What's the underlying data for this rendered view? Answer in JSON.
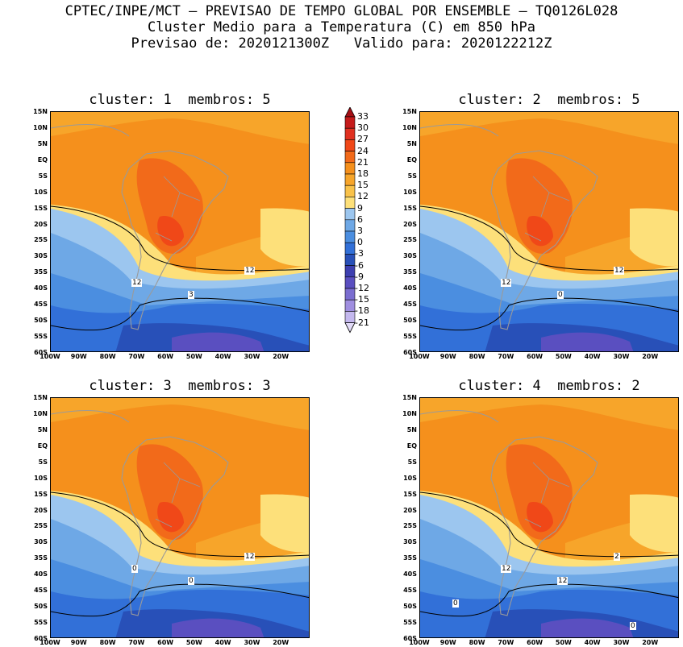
{
  "header": {
    "line1": "CPTEC/INPE/MCT – PREVISAO DE TEMPO GLOBAL POR ENSEMBLE – TQ0126L028",
    "line2": "Cluster Medio para a Temperatura (C) em 850 hPa",
    "line3": "Previsao de: 2020121300Z   Valido para: 2020122212Z"
  },
  "panels": [
    {
      "title": "cluster: 1  membros: 5",
      "contour_labels": [
        "12",
        "12",
        "3"
      ]
    },
    {
      "title": "cluster: 2  membros: 5",
      "contour_labels": [
        "12",
        "12",
        "0"
      ]
    },
    {
      "title": "cluster: 3  membros: 3",
      "contour_labels": [
        "12",
        "0",
        "0"
      ]
    },
    {
      "title": "cluster: 4  membros: 2",
      "contour_labels": [
        "2",
        "12",
        "12",
        "0",
        "0"
      ]
    }
  ],
  "lat_labels": [
    "15N",
    "10N",
    "5N",
    "EQ",
    "5S",
    "10S",
    "15S",
    "20S",
    "25S",
    "30S",
    "35S",
    "40S",
    "45S",
    "50S",
    "55S",
    "60S"
  ],
  "lon_labels": [
    "100W",
    "90W",
    "80W",
    "70W",
    "60W",
    "50W",
    "40W",
    "30W",
    "20W"
  ],
  "colorbar": {
    "levels": [
      "33",
      "30",
      "27",
      "24",
      "21",
      "18",
      "15",
      "12",
      "9",
      "6",
      "3",
      "0",
      "-3",
      "-6",
      "-9",
      "-12",
      "-15",
      "-18",
      "-21"
    ],
    "colors": [
      "#a50f15",
      "#c51b1b",
      "#e03020",
      "#f04818",
      "#f26a1a",
      "#f5901c",
      "#f7a52a",
      "#f9c24a",
      "#fde07a",
      "#9cc6ef",
      "#6ea8e6",
      "#4b8ee0",
      "#3270d8",
      "#2850b8",
      "#3d3fb0",
      "#5a4fc0",
      "#7a6dd0",
      "#a08fe0",
      "#c4b8ee",
      "#e2dbf7"
    ]
  }
}
